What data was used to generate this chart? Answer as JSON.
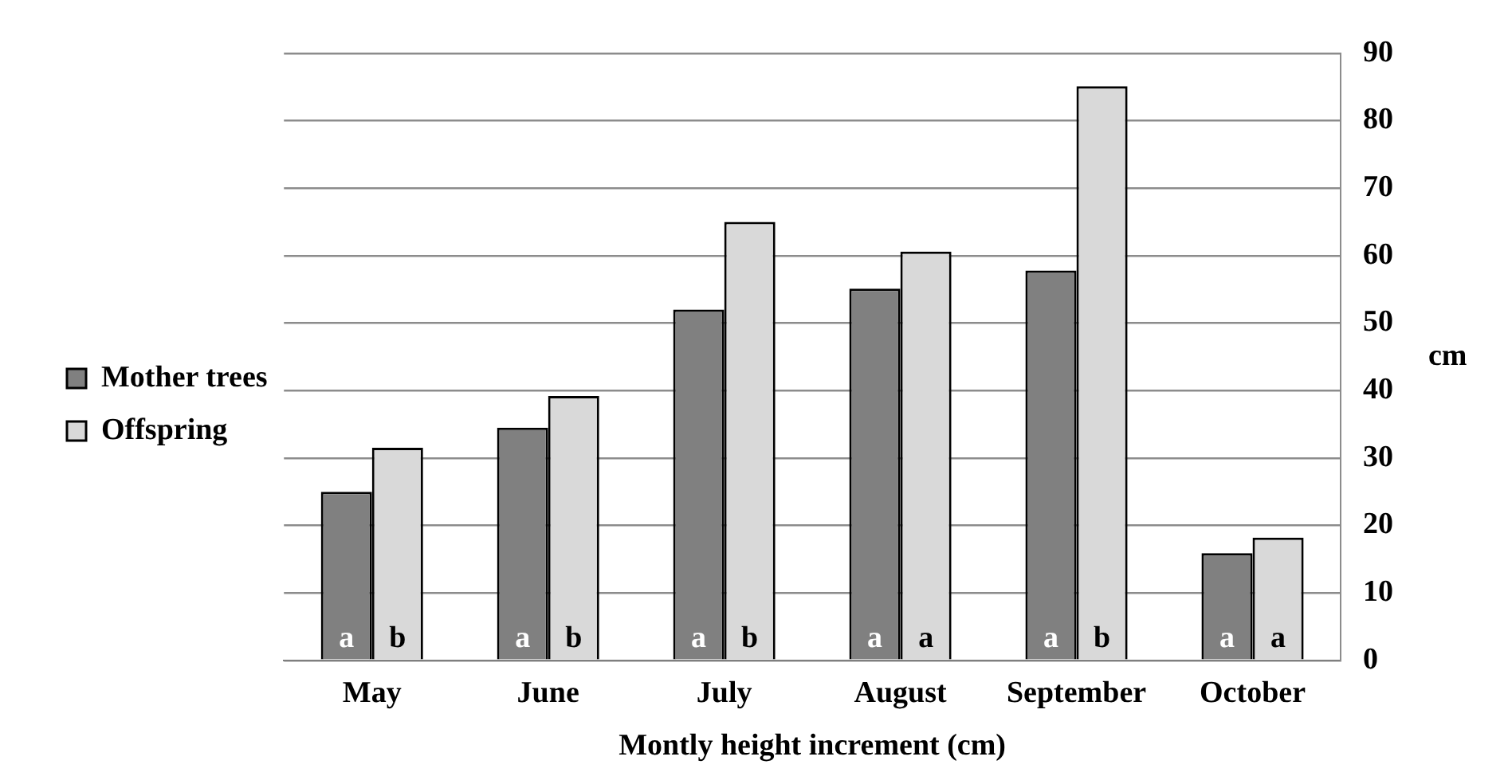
{
  "chart_data": {
    "type": "bar",
    "xlabel": "Montly height increment (cm)",
    "ylabel": "cm",
    "categories": [
      "May",
      "June",
      "July",
      "August",
      "September",
      "October"
    ],
    "series": [
      {
        "name": "Mother trees",
        "color": "#808080",
        "values": [
          25,
          34.5,
          52,
          55.1,
          57.8,
          15.9
        ],
        "value_labels": [
          "a",
          "a",
          "a",
          "a",
          "a",
          "a"
        ]
      },
      {
        "name": "Offspring",
        "color": "#d9d9d9",
        "values": [
          31.5,
          39.2,
          65,
          60.6,
          85.1,
          18.2
        ],
        "value_labels": [
          "b",
          "b",
          "b",
          "a",
          "b",
          "a"
        ]
      }
    ],
    "ylim": [
      0,
      90
    ],
    "yticks": [
      0,
      10,
      20,
      30,
      40,
      50,
      60,
      70,
      80,
      90
    ],
    "grid": "y",
    "legend": "left"
  }
}
